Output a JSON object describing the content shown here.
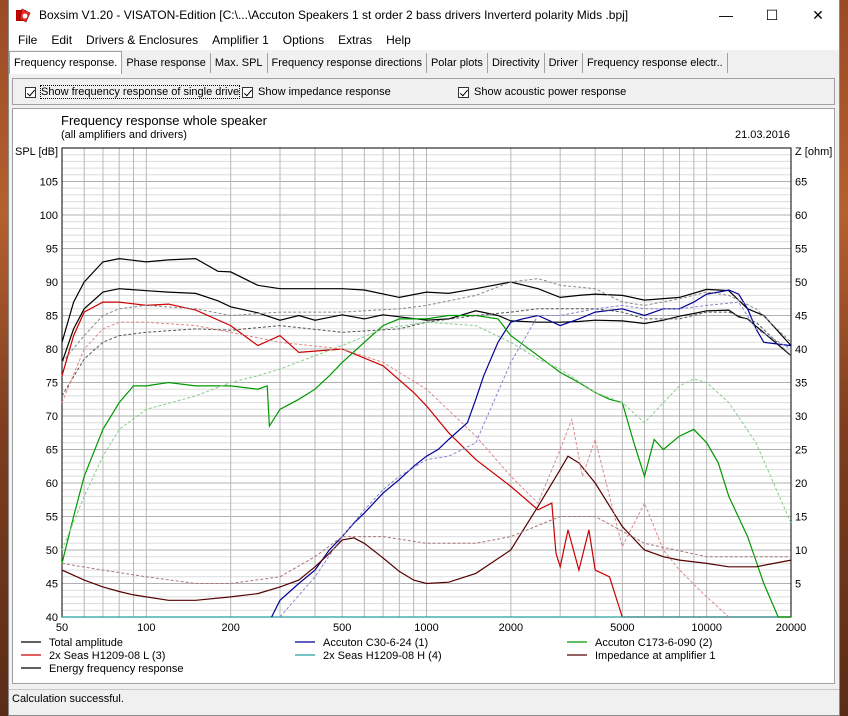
{
  "window": {
    "title": "Boxsim V1.20 - VISATON-Edition [C:\\...\\Accuton Speakers 1 st order 2 bass drivers Inverterd polarity Mids .bpj]",
    "minimize_glyph": "—",
    "maximize_glyph": "☐",
    "close_glyph": "✕"
  },
  "menu": [
    "File",
    "Edit",
    "Drivers & Enclosures",
    "Amplifier 1",
    "Options",
    "Extras",
    "Help"
  ],
  "tabs": [
    "Frequency response.",
    "Phase response",
    "Max. SPL",
    "Frequency response directions",
    "Polar plots",
    "Directivity",
    "Driver",
    "Frequency response electr.."
  ],
  "options": {
    "single_drivers": "Show frequency response of single drive",
    "impedance": "Show impedance response",
    "acoustic_power": "Show acoustic power response"
  },
  "chart": {
    "title": "Frequency response whole speaker",
    "subtitle": "(all amplifiers and drivers)",
    "date": "21.03.2016",
    "ylabel_left": "SPL [dB]",
    "ylabel_right": "Z [ohm]"
  },
  "status": "Calculation successful.",
  "chart_data": {
    "type": "line",
    "x_scale": "log",
    "xlim": [
      50,
      20000
    ],
    "ylim": [
      40,
      110
    ],
    "ylim_right": [
      0,
      70
    ],
    "x_ticks": [
      50,
      100,
      200,
      500,
      1000,
      2000,
      5000,
      10000,
      20000
    ],
    "x_tick_labels": [
      "50",
      "100",
      "200",
      "500",
      "1000",
      "2000",
      "5000",
      "10000",
      "20000"
    ],
    "y_ticks": [
      40,
      45,
      50,
      55,
      60,
      65,
      70,
      75,
      80,
      85,
      90,
      95,
      100,
      105
    ],
    "y_right_ticks": [
      5,
      10,
      15,
      20,
      25,
      30,
      35,
      40,
      45,
      50,
      55,
      60,
      65
    ],
    "grid": true,
    "legend_position": "bottom",
    "series": [
      {
        "name": "Total amplitude",
        "color": "#000000",
        "dash": false,
        "axis": "left",
        "x": [
          50,
          55,
          60,
          70,
          80,
          100,
          120,
          150,
          180,
          200,
          250,
          300,
          350,
          400,
          500,
          600,
          700,
          800,
          1000,
          1200,
          1500,
          1800,
          2000,
          2500,
          3000,
          3500,
          4000,
          5000,
          6000,
          7000,
          8000,
          9000,
          10000,
          12000,
          13000,
          14000,
          15000,
          17000,
          20000
        ],
        "y": [
          78,
          83,
          86,
          88.5,
          89,
          88.7,
          88.5,
          88.3,
          87.2,
          86.3,
          85.4,
          84.3,
          85,
          84.3,
          85.1,
          84.5,
          85.1,
          84.8,
          84.3,
          84.5,
          85.7,
          85,
          84.2,
          84,
          84,
          84.1,
          84.3,
          84.2,
          83.8,
          84.3,
          84.9,
          85.3,
          85.7,
          85.8,
          84.8,
          84.5,
          83.4,
          81.5,
          79
        ]
      },
      {
        "name": "2x Seas H1209-08 L (3)",
        "color": "#cc0000",
        "dash": false,
        "axis": "left",
        "x": [
          50,
          55,
          60,
          70,
          80,
          100,
          120,
          150,
          200,
          250,
          300,
          350,
          500,
          700,
          900,
          1000,
          1200,
          1500,
          2000,
          2500,
          2800,
          2900,
          3000,
          3200,
          3500,
          3800,
          4000,
          4500,
          5000,
          6000,
          6500,
          8000,
          10000,
          20000
        ],
        "y": [
          76,
          82,
          85.5,
          87,
          87,
          86.5,
          86.7,
          85.8,
          83.5,
          80.5,
          82,
          79.5,
          80,
          77.5,
          73.5,
          71.5,
          67.5,
          63.5,
          59.5,
          56,
          57,
          49.5,
          47.5,
          53,
          47,
          53,
          47,
          46,
          40,
          40,
          40,
          40,
          40,
          40
        ]
      },
      {
        "name": "2x Seas H1209-08 H (4)",
        "color": "#20a0a0",
        "dash": false,
        "axis": "left",
        "x": [
          50,
          20000
        ],
        "y": [
          40,
          40
        ]
      },
      {
        "name": "Energy frequency response",
        "color": "#000000",
        "dash": false,
        "axis": "left",
        "x": [
          50,
          55,
          60,
          70,
          80,
          100,
          120,
          150,
          180,
          200,
          250,
          300,
          400,
          500,
          600,
          800,
          1000,
          1200,
          1500,
          2000,
          2500,
          3000,
          3500,
          4000,
          5000,
          6000,
          8000,
          10000,
          11000,
          12000,
          14000,
          16000,
          20000
        ],
        "y": [
          81,
          87,
          90,
          93,
          93.5,
          93,
          93.3,
          93.5,
          91.6,
          91.5,
          89.5,
          89,
          89,
          89,
          88.8,
          87.7,
          88.5,
          88.3,
          89,
          90,
          89,
          87.7,
          88,
          88.2,
          88,
          87.3,
          87.7,
          88.9,
          88.8,
          88.7,
          86,
          85,
          80.5
        ]
      },
      {
        "name": "Accuton C30-6-24 (1)",
        "color": "#000099",
        "dash": false,
        "axis": "left",
        "x": [
          280,
          300,
          350,
          400,
          450,
          500,
          550,
          600,
          700,
          800,
          900,
          1000,
          1100,
          1200,
          1400,
          1500,
          1600,
          1800,
          2000,
          2200,
          2500,
          3000,
          3500,
          4000,
          5000,
          6000,
          7000,
          8000,
          9000,
          10000,
          11000,
          12000,
          13000,
          14000,
          15000,
          16000,
          20000
        ],
        "y": [
          40,
          42.5,
          45,
          47,
          50,
          52,
          54,
          55.5,
          58.5,
          60.5,
          62.5,
          64,
          65,
          66.5,
          69,
          72.5,
          76,
          81,
          84,
          84.5,
          85,
          83.5,
          84.5,
          85.5,
          86,
          85,
          86,
          86,
          87,
          88.2,
          88.5,
          88.8,
          88.2,
          86,
          83,
          81,
          80.5
        ]
      },
      {
        "name": "Accuton C173-6-090 (2)",
        "color": "#009900",
        "dash": false,
        "axis": "left",
        "x": [
          50,
          55,
          60,
          70,
          80,
          90,
          100,
          120,
          150,
          200,
          250,
          270,
          275,
          300,
          350,
          400,
          450,
          500,
          600,
          700,
          800,
          900,
          1000,
          1200,
          1500,
          1800,
          2000,
          2500,
          3000,
          3500,
          4000,
          4500,
          5000,
          5500,
          6000,
          6500,
          7000,
          8000,
          9000,
          10000,
          11000,
          12000,
          14000,
          16000,
          18000,
          20000
        ],
        "y": [
          48,
          55,
          61,
          68,
          72,
          74.5,
          74.5,
          75,
          74.5,
          74.5,
          74,
          74.5,
          68.5,
          71,
          72.5,
          74,
          76,
          78,
          81,
          83.5,
          84.5,
          84.5,
          84.5,
          85,
          85,
          84.5,
          82,
          79,
          76.5,
          75,
          73.5,
          72.5,
          72,
          66,
          61,
          66.5,
          65,
          67,
          68,
          66,
          63,
          58,
          52,
          45,
          40,
          40
        ]
      },
      {
        "name": "Impedance at amplifier 1",
        "color": "#550000",
        "dash": false,
        "axis": "right",
        "x": [
          50,
          60,
          70,
          80,
          90,
          100,
          120,
          150,
          200,
          250,
          300,
          350,
          400,
          450,
          500,
          550,
          600,
          700,
          800,
          900,
          1000,
          1200,
          1500,
          2000,
          2500,
          3000,
          3200,
          3500,
          4000,
          5000,
          6000,
          7000,
          8000,
          10000,
          12000,
          15000,
          20000
        ],
        "y": [
          7,
          5.5,
          4.5,
          3.8,
          3.3,
          3,
          2.5,
          2.5,
          3,
          3.5,
          4.5,
          5.5,
          7.5,
          9.5,
          11.5,
          11.8,
          11,
          8.8,
          6.8,
          5.5,
          5,
          5.2,
          6.5,
          10,
          16.5,
          22,
          24,
          23,
          20,
          13.5,
          10,
          9,
          8.5,
          8,
          7.5,
          7.5,
          8.5
        ]
      },
      {
        "name": "Total amplitude (power)",
        "color": "#555555",
        "dash": true,
        "axis": "left",
        "x": [
          50,
          60,
          70,
          80,
          100,
          150,
          200,
          300,
          500,
          800,
          1000,
          1500,
          2000,
          2500,
          3000,
          4000,
          5000,
          6000,
          8000,
          10000,
          12000,
          15000,
          20000
        ],
        "y": [
          73,
          78.5,
          81,
          82,
          82.5,
          83,
          82.8,
          83.5,
          82.5,
          83,
          84,
          85,
          85.5,
          86,
          86,
          86,
          85.5,
          84.5,
          84.5,
          85.5,
          85.5,
          84,
          79
        ]
      },
      {
        "name": "Energy frequency response (power)",
        "color": "#8a8a8a",
        "dash": true,
        "axis": "left",
        "x": [
          50,
          60,
          70,
          80,
          100,
          150,
          200,
          300,
          500,
          800,
          1000,
          1500,
          2000,
          2500,
          3000,
          4000,
          5000,
          6000,
          8000,
          10000,
          12000,
          15000,
          20000
        ],
        "y": [
          78,
          82,
          85,
          86,
          86.5,
          86,
          85,
          85.5,
          85.5,
          86,
          86.5,
          88,
          90,
          90.5,
          89.5,
          89,
          87,
          86.5,
          87.5,
          88.5,
          88,
          86,
          81
        ]
      },
      {
        "name": "Accuton C30-6-24 (1) (power)",
        "color": "#8888cc",
        "dash": true,
        "axis": "left",
        "x": [
          300,
          400,
          500,
          600,
          700,
          800,
          1000,
          1200,
          1500,
          2000,
          2500,
          3000,
          4000,
          5000,
          6000,
          8000,
          10000,
          13000,
          15000,
          20000
        ],
        "y": [
          40,
          46,
          52,
          56,
          59,
          61,
          63.5,
          64,
          66,
          78,
          85,
          85,
          86,
          86.5,
          86,
          86,
          86.5,
          87,
          83,
          80
        ]
      },
      {
        "name": "Accuton C173-6-090 (2) (power)",
        "color": "#88cc88",
        "dash": true,
        "axis": "left",
        "x": [
          50,
          60,
          70,
          80,
          100,
          150,
          200,
          250,
          300,
          400,
          500,
          700,
          1000,
          1500,
          2000,
          2500,
          3000,
          4000,
          5000,
          6000,
          7000,
          8000,
          9000,
          10000,
          12000,
          15000,
          20000
        ],
        "y": [
          50,
          58,
          64,
          68,
          71,
          73,
          75,
          76,
          77,
          79,
          80.5,
          83,
          84,
          83.5,
          81,
          78.5,
          77,
          73.5,
          72,
          69,
          72,
          74.5,
          75.5,
          75,
          72,
          66,
          54
        ]
      },
      {
        "name": "2x Seas H1209-08 L (3) (power)",
        "color": "#dd8888",
        "dash": true,
        "axis": "left",
        "x": [
          50,
          60,
          70,
          80,
          100,
          150,
          200,
          300,
          500,
          700,
          1000,
          1500,
          2000,
          2500,
          3000,
          3300,
          3600,
          4000,
          5000,
          6000,
          7000,
          8000,
          10000,
          12000
        ],
        "y": [
          72,
          80,
          83,
          84,
          84,
          83.5,
          82.5,
          81,
          80,
          78,
          74,
          67,
          61,
          57,
          65,
          69.5,
          61,
          66.5,
          50.5,
          57,
          50,
          47,
          43,
          40
        ]
      },
      {
        "name": "Impedance (power)",
        "color": "#aa7777",
        "dash": true,
        "axis": "right",
        "x": [
          50,
          70,
          100,
          150,
          200,
          300,
          400,
          500,
          700,
          1000,
          1500,
          2000,
          3000,
          4000,
          6000,
          10000,
          20000
        ],
        "y": [
          8,
          7,
          6,
          5,
          5,
          6,
          9,
          12,
          12,
          11,
          11,
          12,
          15,
          15,
          11,
          9,
          9
        ]
      }
    ]
  }
}
